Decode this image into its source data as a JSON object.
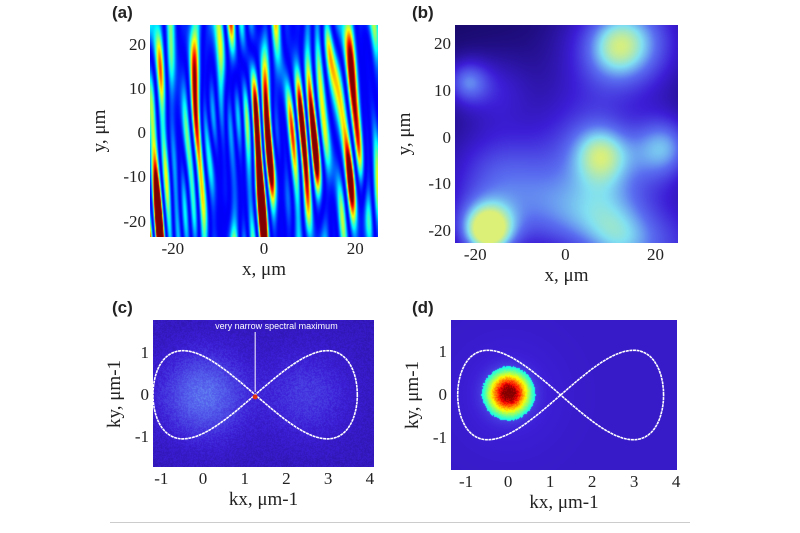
{
  "chart_data": [
    {
      "type": "heatmap",
      "panel_label": "(a)",
      "xlabel": "x, μm",
      "ylabel": "y, μm",
      "xticks": [
        "-20",
        "0",
        "20"
      ],
      "xtick_values": [
        -20,
        0,
        20
      ],
      "yticks": [
        "20",
        "10",
        "0",
        "-10",
        "-20"
      ],
      "ytick_values": [
        20,
        10,
        0,
        -10,
        -20
      ],
      "xlim": [
        -25,
        25
      ],
      "ylim": [
        -23.5,
        24.5
      ],
      "colormap": "jet",
      "pattern": "vertically elongated speckle streaks"
    },
    {
      "type": "heatmap",
      "panel_label": "(b)",
      "xlabel": "x, μm",
      "ylabel": "y, μm",
      "xticks": [
        "-20",
        "0",
        "20"
      ],
      "xtick_values": [
        -20,
        0,
        20
      ],
      "yticks": [
        "20",
        "10",
        "0",
        "-10",
        "-20"
      ],
      "ytick_values": [
        20,
        10,
        0,
        -10,
        -20
      ],
      "xlim": [
        -24.5,
        25
      ],
      "ylim": [
        -22.5,
        24
      ],
      "colormap": "plasma-blue",
      "pattern": "smooth blobs, brightest near (-17, -20)"
    },
    {
      "type": "heatmap",
      "panel_label": "(c)",
      "xlabel": "kx, μm-1",
      "ylabel": "ky, μm-1",
      "xticks": [
        "-1",
        "0",
        "1",
        "2",
        "3",
        "4"
      ],
      "xtick_values": [
        -1,
        0,
        1,
        2,
        3,
        4
      ],
      "yticks": [
        "1",
        "0",
        "-1"
      ],
      "ytick_values": [
        1,
        0,
        -1
      ],
      "xlim": [
        -1.2,
        4.1
      ],
      "ylim": [
        -1.72,
        1.78
      ],
      "colormap": "jet-dark",
      "annotation": "very narrow spectral maximum",
      "annotation_point": [
        1.25,
        -0.05
      ],
      "curve": "figure-eight crossing at kx=1.25, ky=0"
    },
    {
      "type": "heatmap",
      "panel_label": "(d)",
      "xlabel": "kx, μm-1",
      "ylabel": "ky, μm-1",
      "xticks": [
        "-1",
        "0",
        "1",
        "2",
        "3",
        "4"
      ],
      "xtick_values": [
        -1,
        0,
        1,
        2,
        3,
        4
      ],
      "yticks": [
        "1",
        "0",
        "-1"
      ],
      "ytick_values": [
        1,
        0,
        -1
      ],
      "xlim": [
        -1.36,
        4.02
      ],
      "ylim": [
        -1.76,
        1.76
      ],
      "colormap": "jet-dark",
      "peak": [
        0,
        0.05
      ],
      "curve": "figure-eight crossing at kx=1.25, ky=0"
    }
  ],
  "colors": {
    "curve": "#ffffff",
    "marker": "#e03010",
    "background": "#3a1ad0"
  }
}
